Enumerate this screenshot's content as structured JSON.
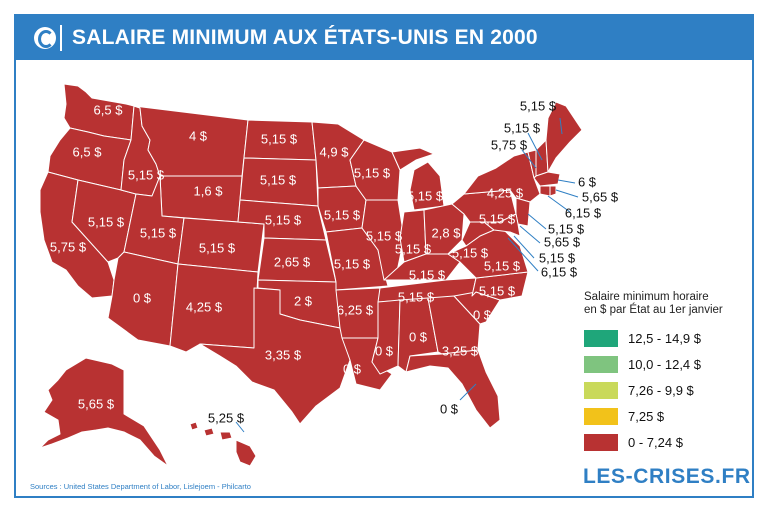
{
  "header": {
    "title": "SALAIRE MINIMUM AUX ÉTATS-UNIS EN 2000"
  },
  "colors": {
    "brand": "#2f7fc4",
    "state_fill": "#b83232",
    "state_border": "#ffffff"
  },
  "legend": {
    "title_line1": "Salaire minimum horaire",
    "title_line2": "en $ par État au 1er janvier",
    "items": [
      {
        "label": "12,5 - 14,9 $",
        "color": "#1fa67a"
      },
      {
        "label": "10,0 - 12,4 $",
        "color": "#7fc47f"
      },
      {
        "label": "7,26 - 9,9 $",
        "color": "#c9d95a"
      },
      {
        "label": "7,25 $",
        "color": "#f2c21a"
      },
      {
        "label": "0 - 7,24 $",
        "color": "#b83232"
      }
    ]
  },
  "states": {
    "WA": "6,5 $",
    "OR": "6,5 $",
    "CA": "5,75 $",
    "NV": "5,15 $",
    "ID": "5,15 $",
    "MT": "4 $",
    "WY": "1,6 $",
    "UT": "5,15 $",
    "AZ": "0 $",
    "CO": "5,15 $",
    "NM": "4,25 $",
    "ND": "5,15 $",
    "SD": "5,15 $",
    "NE": "5,15 $",
    "KS": "2,65 $",
    "OK": "2 $",
    "TX": "3,35 $",
    "MN": "4,9 $",
    "IA": "5,15 $",
    "MO": "5,15 $",
    "AR": "6,25 $",
    "LA": "0 $",
    "WI": "5,15 $",
    "IL": "5,15 $",
    "MI": "5,15 $",
    "IN": "5,15 $",
    "OH": "2,8 $",
    "KY": "5,15 $",
    "TN": "5,15 $",
    "MS": "0 $",
    "AL": "0 $",
    "GA": "3,25 $",
    "FL": "0 $",
    "SC": "0 $",
    "NC": "5,15 $",
    "VA": "5,15 $",
    "WV": "5,15 $",
    "PA": "5,15 $",
    "NY": "4,25 $",
    "AK": "5,65 $",
    "HI": "5,25 $",
    "ME": "5,15 $",
    "NH": "5,15 $",
    "VT": "5,75 $",
    "MA": "6 $",
    "RI": "5,65 $",
    "CT": "6,15 $",
    "NJ": "5,15 $",
    "DE": "5,65 $",
    "MD": "5,15 $",
    "DC": "6,15 $"
  },
  "footer": {
    "sources": "Sources : United States Department of Labor, Lislejoem - Philcarto",
    "brand": "LES-CRISES.FR"
  }
}
